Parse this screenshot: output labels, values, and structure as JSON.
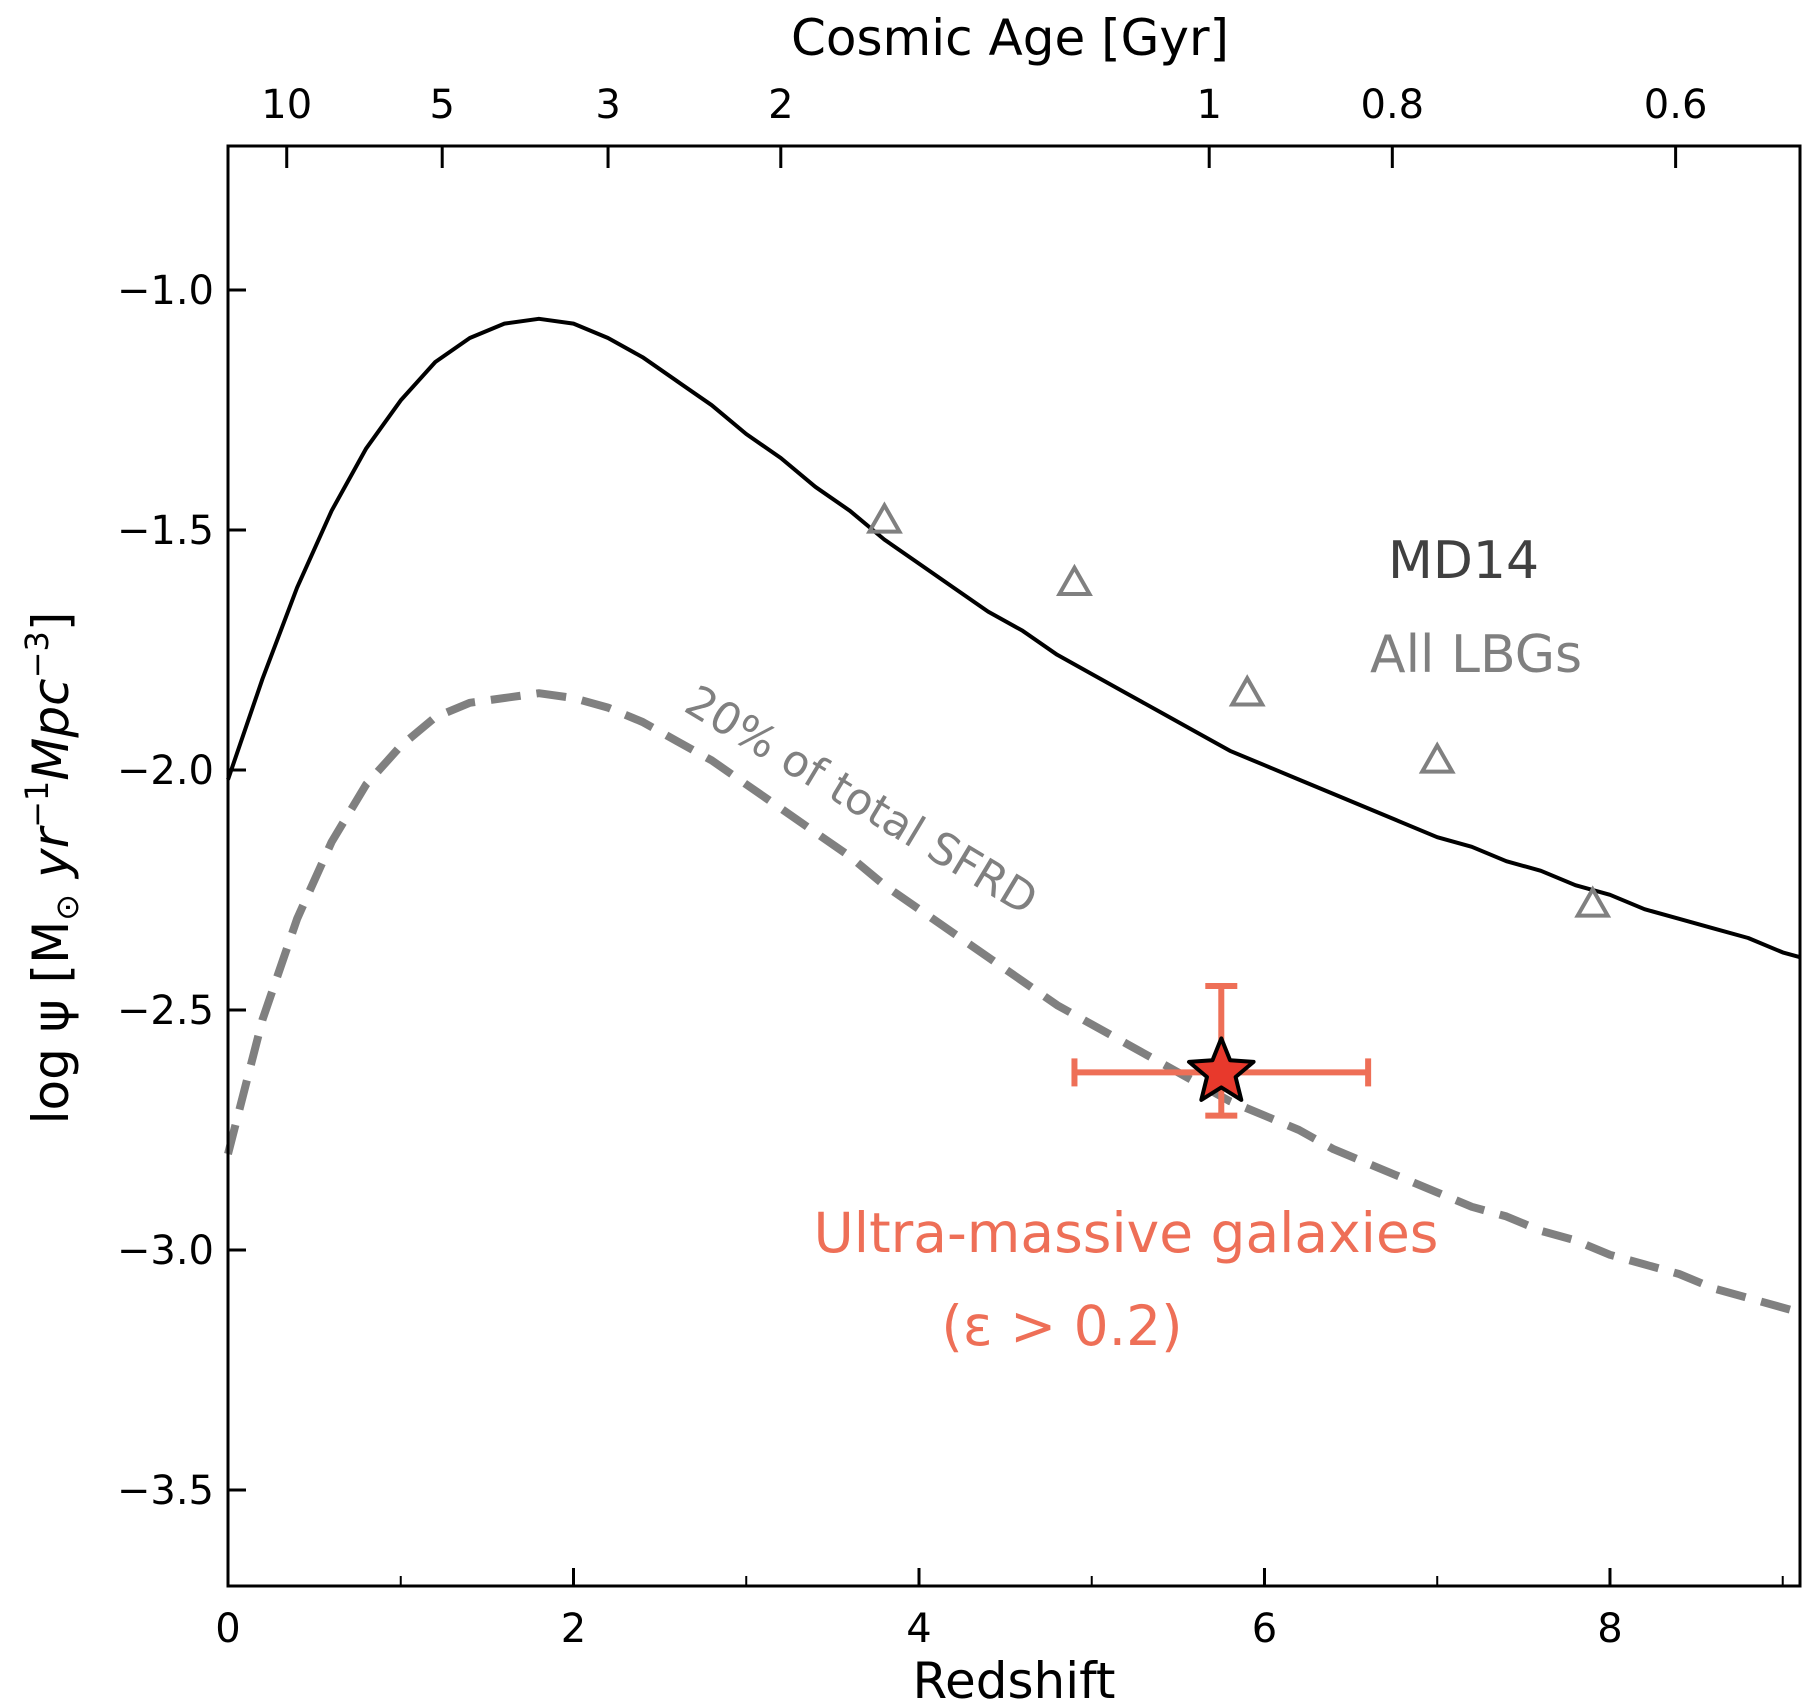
{
  "chart_data": {
    "type": "line",
    "xlabel": "Redshift",
    "ylabel": "log ψ [M",
    "ylabel_sub": "⊙",
    "ylabel_tail_a": " yr",
    "ylabel_sup_a": "−1",
    "ylabel_tail_b": "Mpc",
    "ylabel_sup_b": "−3",
    "ylabel_end": "]",
    "top_xlabel": "Cosmic Age [Gyr]",
    "xlim": [
      0,
      9.1
    ],
    "ylim": [
      -3.7,
      -0.7
    ],
    "x_ticks": [
      {
        "value": 0,
        "label": "0"
      },
      {
        "value": 2,
        "label": "2"
      },
      {
        "value": 4,
        "label": "4"
      },
      {
        "value": 6,
        "label": "6"
      },
      {
        "value": 8,
        "label": "8"
      }
    ],
    "x_minor_ticks": [
      1,
      3,
      5,
      7,
      9
    ],
    "y_ticks": [
      {
        "value": -1.0,
        "label": "−1.0"
      },
      {
        "value": -1.5,
        "label": "−1.5"
      },
      {
        "value": -2.0,
        "label": "−2.0"
      },
      {
        "value": -2.5,
        "label": "−2.5"
      },
      {
        "value": -3.0,
        "label": "−3.0"
      },
      {
        "value": -3.5,
        "label": "−3.5"
      }
    ],
    "top_ticks": [
      {
        "z": 0.34,
        "label": "10"
      },
      {
        "z": 1.24,
        "label": "5"
      },
      {
        "z": 2.2,
        "label": "3"
      },
      {
        "z": 3.2,
        "label": "2"
      },
      {
        "z": 5.68,
        "label": "1"
      },
      {
        "z": 6.74,
        "label": "0.8"
      },
      {
        "z": 8.38,
        "label": "0.6"
      }
    ],
    "series": [
      {
        "name": "MD14",
        "style": "solid",
        "color": "#000000",
        "z": [
          0.0,
          0.2,
          0.4,
          0.6,
          0.8,
          1.0,
          1.2,
          1.4,
          1.6,
          1.8,
          2.0,
          2.2,
          2.4,
          2.6,
          2.8,
          3.0,
          3.2,
          3.4,
          3.6,
          3.8,
          4.0,
          4.2,
          4.4,
          4.6,
          4.8,
          5.0,
          5.2,
          5.4,
          5.6,
          5.8,
          6.0,
          6.2,
          6.4,
          6.6,
          6.8,
          7.0,
          7.2,
          7.4,
          7.6,
          7.8,
          8.0,
          8.2,
          8.4,
          8.6,
          8.8,
          9.0,
          9.1
        ],
        "values": [
          -2.02,
          -1.81,
          -1.62,
          -1.46,
          -1.33,
          -1.23,
          -1.15,
          -1.1,
          -1.07,
          -1.06,
          -1.07,
          -1.1,
          -1.14,
          -1.19,
          -1.24,
          -1.3,
          -1.35,
          -1.41,
          -1.46,
          -1.52,
          -1.57,
          -1.62,
          -1.67,
          -1.71,
          -1.76,
          -1.8,
          -1.84,
          -1.88,
          -1.92,
          -1.96,
          -1.99,
          -2.02,
          -2.05,
          -2.08,
          -2.11,
          -2.14,
          -2.16,
          -2.19,
          -2.21,
          -2.24,
          -2.26,
          -2.29,
          -2.31,
          -2.33,
          -2.35,
          -2.38,
          -2.39
        ]
      },
      {
        "name": "20% of total SFRD",
        "style": "dashed",
        "color": "#808080",
        "z": [
          0.0,
          0.2,
          0.4,
          0.6,
          0.8,
          1.0,
          1.2,
          1.4,
          1.6,
          1.8,
          2.0,
          2.2,
          2.4,
          2.6,
          2.8,
          3.0,
          3.2,
          3.4,
          3.6,
          3.8,
          4.0,
          4.2,
          4.4,
          4.6,
          4.8,
          5.0,
          5.2,
          5.4,
          5.6,
          5.8,
          6.0,
          6.2,
          6.4,
          6.6,
          6.8,
          7.0,
          7.2,
          7.4,
          7.6,
          7.8,
          8.0,
          8.2,
          8.4,
          8.6,
          8.8,
          9.0,
          9.1
        ],
        "values": [
          -2.8,
          -2.52,
          -2.31,
          -2.15,
          -2.03,
          -1.95,
          -1.89,
          -1.86,
          -1.85,
          -1.84,
          -1.85,
          -1.87,
          -1.9,
          -1.94,
          -1.98,
          -2.03,
          -2.08,
          -2.13,
          -2.18,
          -2.24,
          -2.29,
          -2.34,
          -2.39,
          -2.44,
          -2.49,
          -2.53,
          -2.57,
          -2.61,
          -2.65,
          -2.69,
          -2.72,
          -2.75,
          -2.79,
          -2.82,
          -2.85,
          -2.88,
          -2.91,
          -2.93,
          -2.96,
          -2.98,
          -3.01,
          -3.03,
          -3.05,
          -3.08,
          -3.1,
          -3.12,
          -3.13
        ]
      }
    ],
    "lbg_points": {
      "name": "All LBGs",
      "color": "#808080",
      "z": [
        3.8,
        4.9,
        5.9,
        7.0,
        7.9
      ],
      "values": [
        -1.48,
        -1.61,
        -1.84,
        -1.98,
        -2.28
      ]
    },
    "measurement": {
      "name": "Ultra-massive galaxies",
      "z": 5.75,
      "value": -2.63,
      "z_err": [
        4.9,
        6.6
      ],
      "value_err": [
        -2.45,
        -2.72
      ],
      "color": "#EE6F57",
      "marker_fill": "#E8392C"
    },
    "annotations": {
      "md14": "MD14",
      "all_lbgs": "All LBGs",
      "sfrd": "20% of total SFRD",
      "ultra": "Ultra-massive galaxies",
      "epsilon": "(ε > 0.2)"
    },
    "colors": {
      "md14_label": "#404040",
      "lbg": "#808080",
      "ultra": "#EE6F57"
    }
  }
}
